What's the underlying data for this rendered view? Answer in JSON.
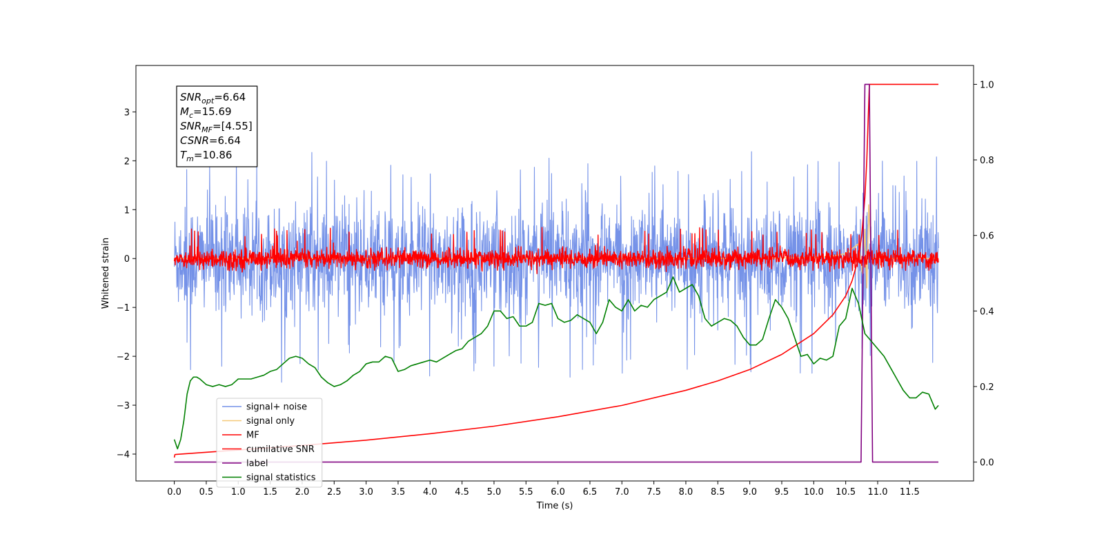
{
  "chart_data": {
    "type": "line",
    "xlabel": "Time (s)",
    "ylabel": "Whitened strain",
    "xlim": [
      -0.6,
      12.5
    ],
    "ylim": [
      -4.55,
      3.95
    ],
    "y2lim": [
      -0.05,
      1.05
    ],
    "x_ticks": [
      0.0,
      0.5,
      1.0,
      1.5,
      2.0,
      2.5,
      3.0,
      3.5,
      4.0,
      4.5,
      5.0,
      5.5,
      6.0,
      6.5,
      7.0,
      7.5,
      8.0,
      8.5,
      9.0,
      9.5,
      10.0,
      10.5,
      11.0,
      11.5
    ],
    "x_tick_labels": [
      "0.0",
      "0.5",
      "1.0",
      "1.5",
      "2.0",
      "2.5",
      "3.0",
      "3.5",
      "4.0",
      "4.5",
      "5.0",
      "5.5",
      "6.0",
      "6.5",
      "7.0",
      "7.5",
      "8.0",
      "8.5",
      "9.0",
      "9.5",
      "10.0",
      "10.5",
      "11.0",
      "11.5"
    ],
    "y_ticks": [
      -4,
      -3,
      -2,
      -1,
      0,
      1,
      2,
      3
    ],
    "y_tick_labels": [
      "−4",
      "−3",
      "−2",
      "−1",
      "0",
      "1",
      "2",
      "3"
    ],
    "y2_ticks": [
      0.0,
      0.2,
      0.4,
      0.6,
      0.8,
      1.0
    ],
    "y2_tick_labels": [
      "0.0",
      "0.2",
      "0.4",
      "0.6",
      "0.8",
      "1.0"
    ],
    "grid": false,
    "legend_position": "lower-left",
    "info_box": {
      "position": "top-left",
      "lines": [
        {
          "base": "SNR",
          "sub": "opt",
          "value": "=6.64"
        },
        {
          "base": "M",
          "sub": "c",
          "value": "=15.69"
        },
        {
          "base": "SNR",
          "sub": "MF",
          "value": "=[4.55]"
        },
        {
          "base": "CSNR",
          "sub": "",
          "value": "=6.64"
        },
        {
          "base": "T",
          "sub": "m",
          "value": "=10.86"
        }
      ]
    },
    "series": [
      {
        "name": "signal+ noise",
        "color": "#7592e8",
        "axis": "left",
        "noise": {
          "t_start": 0.0,
          "t_end": 11.95,
          "std": 0.9,
          "min": -4.15,
          "max": 3.55,
          "band_low": -1.75,
          "band_high": 1.75
        }
      },
      {
        "name": "signal only",
        "color": "#f5c878",
        "axis": "left",
        "x": [
          0.0,
          2.0,
          4.0,
          6.0,
          8.0,
          9.0,
          10.0,
          10.3,
          10.5,
          10.6,
          10.7,
          10.76,
          10.8,
          10.83,
          10.86,
          10.9,
          11.0,
          11.95
        ],
        "y": [
          0.0,
          0.0,
          0.0,
          0.0,
          0.0,
          0.0,
          0.02,
          0.05,
          0.1,
          0.2,
          0.3,
          -0.3,
          0.6,
          -0.6,
          1.1,
          0.0,
          0.0,
          0.0
        ]
      },
      {
        "name": "MF",
        "color": "#ff0000",
        "axis": "left",
        "noise": {
          "t_start": 0.0,
          "t_end": 11.95,
          "std": 0.16,
          "min": -0.38,
          "max": 1.05,
          "band_low": -0.35,
          "band_high": 0.6
        }
      },
      {
        "name": "cumilative SNR",
        "color": "#ff0000",
        "axis": "right",
        "x": [
          0.0,
          0.01,
          1.0,
          2.0,
          3.0,
          4.0,
          5.0,
          6.0,
          7.0,
          8.0,
          8.5,
          9.0,
          9.5,
          10.0,
          10.3,
          10.5,
          10.6,
          10.7,
          10.75,
          10.8,
          10.83,
          10.86,
          10.87,
          11.0,
          11.5,
          11.95
        ],
        "y": [
          0.012,
          0.02,
          0.032,
          0.044,
          0.058,
          0.075,
          0.095,
          0.12,
          0.15,
          0.19,
          0.215,
          0.245,
          0.285,
          0.34,
          0.39,
          0.44,
          0.48,
          0.54,
          0.6,
          0.7,
          0.8,
          0.95,
          1.0,
          1.0,
          1.0,
          1.0
        ]
      },
      {
        "name": "label",
        "color": "#800080",
        "axis": "right",
        "x": [
          0.0,
          10.74,
          10.8,
          10.87,
          10.92,
          11.95
        ],
        "y": [
          0.0,
          0.0,
          1.0,
          1.0,
          0.0,
          0.0
        ]
      },
      {
        "name": "signal statistics",
        "color": "#008000",
        "axis": "right",
        "x": [
          0.0,
          0.05,
          0.1,
          0.15,
          0.2,
          0.25,
          0.3,
          0.35,
          0.4,
          0.5,
          0.6,
          0.7,
          0.8,
          0.9,
          1.0,
          1.1,
          1.2,
          1.3,
          1.4,
          1.5,
          1.6,
          1.7,
          1.8,
          1.9,
          2.0,
          2.1,
          2.2,
          2.3,
          2.4,
          2.5,
          2.6,
          2.7,
          2.8,
          2.9,
          3.0,
          3.1,
          3.2,
          3.3,
          3.4,
          3.5,
          3.6,
          3.7,
          3.8,
          3.9,
          4.0,
          4.1,
          4.2,
          4.3,
          4.4,
          4.5,
          4.6,
          4.7,
          4.8,
          4.9,
          5.0,
          5.1,
          5.2,
          5.3,
          5.4,
          5.5,
          5.6,
          5.7,
          5.8,
          5.9,
          6.0,
          6.1,
          6.2,
          6.3,
          6.4,
          6.5,
          6.6,
          6.7,
          6.8,
          6.9,
          7.0,
          7.1,
          7.2,
          7.3,
          7.4,
          7.5,
          7.6,
          7.7,
          7.8,
          7.9,
          8.0,
          8.1,
          8.2,
          8.3,
          8.4,
          8.5,
          8.6,
          8.7,
          8.8,
          8.9,
          9.0,
          9.1,
          9.2,
          9.3,
          9.4,
          9.5,
          9.6,
          9.7,
          9.8,
          9.9,
          10.0,
          10.1,
          10.2,
          10.3,
          10.4,
          10.5,
          10.6,
          10.7,
          10.8,
          10.9,
          11.0,
          11.1,
          11.2,
          11.3,
          11.4,
          11.5,
          11.6,
          11.7,
          11.8,
          11.9,
          11.95
        ],
        "y": [
          0.06,
          0.035,
          0.06,
          0.11,
          0.18,
          0.215,
          0.225,
          0.225,
          0.22,
          0.205,
          0.2,
          0.205,
          0.2,
          0.205,
          0.22,
          0.22,
          0.22,
          0.225,
          0.23,
          0.24,
          0.245,
          0.26,
          0.275,
          0.28,
          0.275,
          0.26,
          0.25,
          0.225,
          0.21,
          0.2,
          0.205,
          0.215,
          0.23,
          0.24,
          0.26,
          0.265,
          0.265,
          0.28,
          0.275,
          0.24,
          0.245,
          0.255,
          0.26,
          0.265,
          0.27,
          0.265,
          0.275,
          0.285,
          0.295,
          0.3,
          0.32,
          0.33,
          0.34,
          0.36,
          0.4,
          0.4,
          0.38,
          0.385,
          0.36,
          0.36,
          0.37,
          0.42,
          0.415,
          0.42,
          0.38,
          0.37,
          0.375,
          0.39,
          0.38,
          0.37,
          0.34,
          0.37,
          0.43,
          0.41,
          0.4,
          0.43,
          0.4,
          0.415,
          0.41,
          0.43,
          0.44,
          0.45,
          0.49,
          0.45,
          0.46,
          0.47,
          0.44,
          0.38,
          0.36,
          0.37,
          0.38,
          0.375,
          0.36,
          0.33,
          0.31,
          0.31,
          0.325,
          0.38,
          0.43,
          0.41,
          0.38,
          0.33,
          0.28,
          0.285,
          0.26,
          0.275,
          0.27,
          0.28,
          0.36,
          0.38,
          0.46,
          0.42,
          0.34,
          0.32,
          0.3,
          0.28,
          0.25,
          0.22,
          0.19,
          0.17,
          0.17,
          0.185,
          0.18,
          0.14,
          0.15
        ]
      }
    ]
  }
}
